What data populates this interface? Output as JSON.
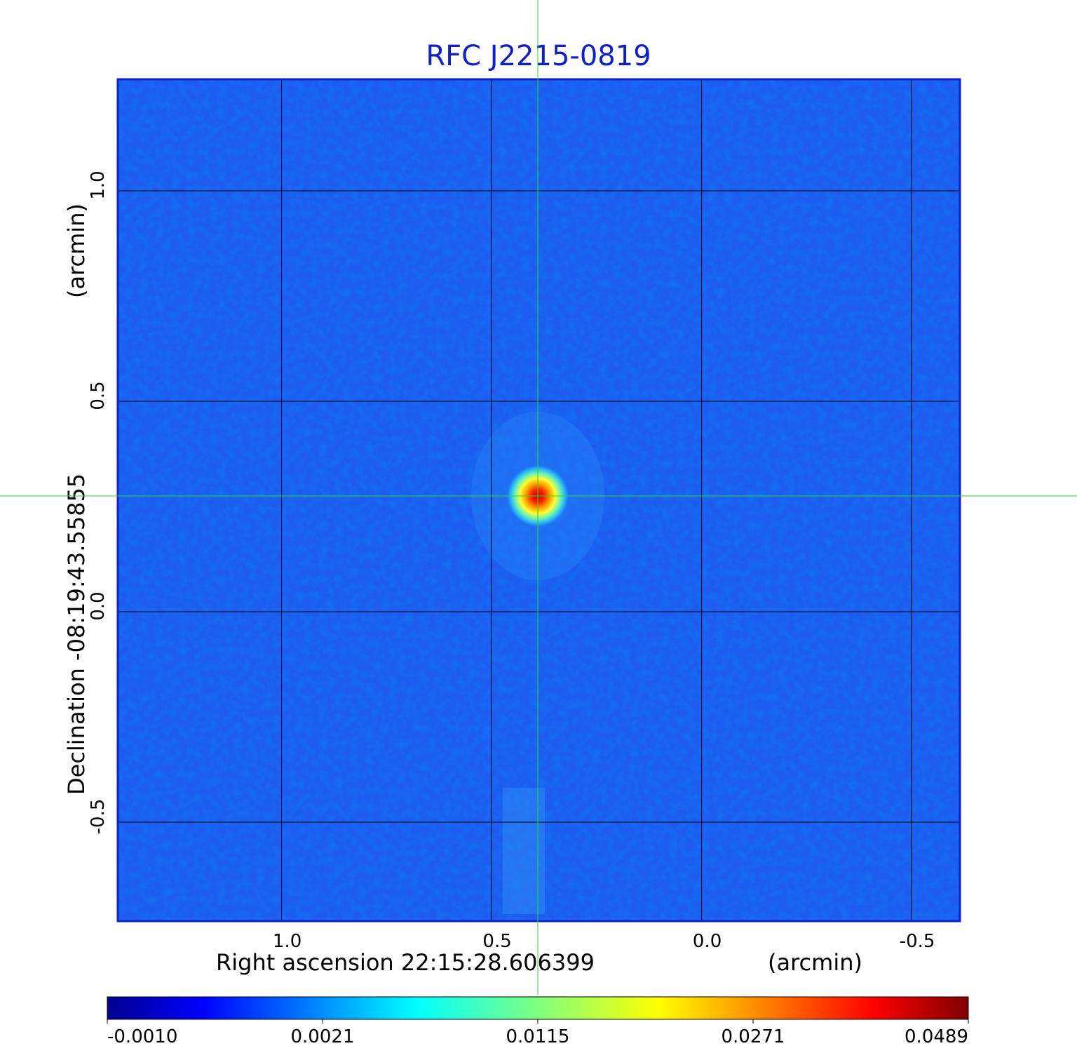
{
  "chart_data": {
    "type": "heatmap",
    "title": "RFC J2215-0819",
    "xlabel": "Right ascension  22:15:28.606399",
    "xunit": "(arcmin)",
    "ylabel": "Declination  -08:19:43.55855",
    "yunit": "(arcmin)",
    "x_ticks": [
      {
        "value": 1.0,
        "label": "1.0"
      },
      {
        "value": 0.5,
        "label": "0.5"
      },
      {
        "value": 0.0,
        "label": "0.0"
      },
      {
        "value": -0.5,
        "label": "-0.5"
      }
    ],
    "y_ticks": [
      {
        "value": 1.0,
        "label": "1.0"
      },
      {
        "value": 0.5,
        "label": "0.5"
      },
      {
        "value": 0.0,
        "label": "0.0"
      },
      {
        "value": -0.5,
        "label": "-0.5"
      }
    ],
    "xlim": [
      1.39,
      -0.615
    ],
    "ylim": [
      -0.735,
      1.265
    ],
    "grid": true,
    "crosshair": {
      "x": 0.39,
      "y": 0.275,
      "color": "#22dd22"
    },
    "source": {
      "x": 0.39,
      "y": 0.275,
      "peak": 0.0489
    },
    "colormap": "jet",
    "colorbar": {
      "min": -0.001,
      "max": 0.0489,
      "ticks": [
        "-0.0010",
        "0.0021",
        "0.0115",
        "0.0271",
        "0.0489"
      ]
    }
  }
}
